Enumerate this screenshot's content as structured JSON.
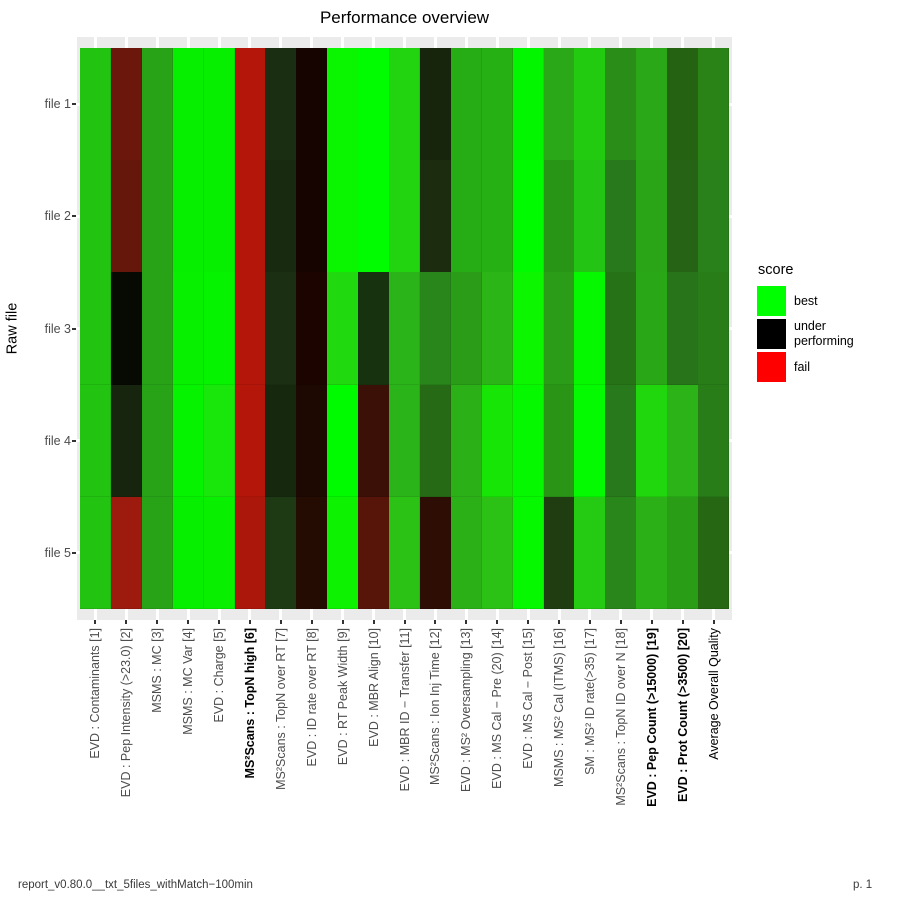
{
  "page": {
    "title": "Performance overview",
    "footer_left": "report_v0.80.0__txt_5files_withMatch−100min",
    "footer_right": "p. 1"
  },
  "y_axis": {
    "title": "Raw file"
  },
  "legend": {
    "title": "score",
    "items": [
      {
        "label": "best",
        "color": "#00ff00"
      },
      {
        "label": "under performing",
        "color": "#000000"
      },
      {
        "label": "fail",
        "color": "#ff0000"
      }
    ]
  },
  "chart_data": {
    "type": "heatmap",
    "title": "Performance overview",
    "ylabel": "Raw file",
    "legend_position": "right",
    "panel_background": "#ebebeb",
    "gridline_color": "#ffffff",
    "score_scale": {
      "best": "#00ff00",
      "under_performing": "#000000",
      "fail": "#ff0000"
    },
    "rows": [
      "file 1",
      "file 2",
      "file 3",
      "file 4",
      "file 5"
    ],
    "columns": [
      {
        "label": "EVD : Contaminants [1]",
        "style": "normal"
      },
      {
        "label": "EVD : Pep Intensity (>23.0) [2]",
        "style": "normal"
      },
      {
        "label": "MSMS : MC [3]",
        "style": "normal"
      },
      {
        "label": "MSMS : MC Var [4]",
        "style": "normal"
      },
      {
        "label": "EVD : Charge [5]",
        "style": "normal"
      },
      {
        "label": "MS²Scans : TopN high [6]",
        "style": "bold"
      },
      {
        "label": "MS²Scans : TopN over RT [7]",
        "style": "normal"
      },
      {
        "label": "EVD : ID rate over RT [8]",
        "style": "normal"
      },
      {
        "label": "EVD : RT Peak Width [9]",
        "style": "normal"
      },
      {
        "label": "EVD : MBR Align [10]",
        "style": "normal"
      },
      {
        "label": "EVD : MBR ID − Transfer [11]",
        "style": "normal"
      },
      {
        "label": "MS²Scans : Ion Inj Time [12]",
        "style": "normal"
      },
      {
        "label": "EVD : MS² Oversampling [13]",
        "style": "normal"
      },
      {
        "label": "EVD : MS Cal − Pre (20) [14]",
        "style": "normal"
      },
      {
        "label": "EVD : MS Cal − Post [15]",
        "style": "normal"
      },
      {
        "label": "MSMS : MS² Cal (ITMS) [16]",
        "style": "normal"
      },
      {
        "label": "SM : MS² ID rate(>35) [17]",
        "style": "normal"
      },
      {
        "label": "MS²Scans : TopN ID over N [18]",
        "style": "normal"
      },
      {
        "label": "EVD : Pep Count (>15000) [19]",
        "style": "bold"
      },
      {
        "label": "EVD : Prot Count (>3500) [20]",
        "style": "bold"
      },
      {
        "label": "Average Overall Quality",
        "style": "black"
      }
    ],
    "cell_colors": [
      [
        "#22c311",
        "#6b170c",
        "#28a317",
        "#07ef00",
        "#07ef00",
        "#b5160a",
        "#1a2f12",
        "#150400",
        "#0af500",
        "#01fb00",
        "#22d30f",
        "#17250d",
        "#26ad15",
        "#27b013",
        "#01f600",
        "#2aa818",
        "#22cb10",
        "#2a8d18",
        "#2aa818",
        "#256313",
        "#2a8316"
      ],
      [
        "#22c311",
        "#66170c",
        "#28a317",
        "#07ef00",
        "#07ef00",
        "#b5160a",
        "#182b10",
        "#150400",
        "#0af500",
        "#01fb00",
        "#22d30f",
        "#1c2c0e",
        "#26ad15",
        "#27b013",
        "#00fb00",
        "#289517",
        "#24c414",
        "#27791b",
        "#2aa517",
        "#266314",
        "#28811a"
      ],
      [
        "#22c311",
        "#070a03",
        "#28a317",
        "#06f000",
        "#05f200",
        "#b5160a",
        "#1b3012",
        "#1c0500",
        "#20d90e",
        "#17320e",
        "#2bb31a",
        "#28861b",
        "#2a9c18",
        "#2bb517",
        "#0cf600",
        "#2a9c18",
        "#05f800",
        "#267317",
        "#2aa716",
        "#27741a",
        "#287d18"
      ],
      [
        "#22c311",
        "#17240e",
        "#28a317",
        "#06f300",
        "#19e70c",
        "#b5160a",
        "#16290f",
        "#1d0802",
        "#00fa00",
        "#3b1007",
        "#2bb31a",
        "#276a15",
        "#2bb117",
        "#16e506",
        "#06f800",
        "#2a9417",
        "#03fa00",
        "#28791b",
        "#20d60d",
        "#2bb317",
        "#287d18"
      ],
      [
        "#22c311",
        "#9d1a0e",
        "#28a317",
        "#07ef00",
        "#08f000",
        "#ab170b",
        "#1d3a14",
        "#250c03",
        "#0df200",
        "#57150a",
        "#2bc115",
        "#2e0d04",
        "#2bb117",
        "#2bc115",
        "#06f800",
        "#1f3d10",
        "#24cb12",
        "#28861b",
        "#2bb117",
        "#2a9d16",
        "#256712"
      ]
    ]
  }
}
